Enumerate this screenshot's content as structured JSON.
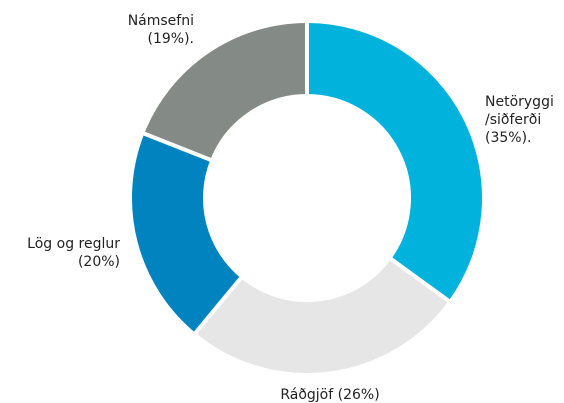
{
  "chart_data": {
    "type": "donut",
    "categories": [
      "Netöryggi /siðferði",
      "Ráðgjöf",
      "Lög og reglur",
      "Námsefni"
    ],
    "values": [
      35,
      26,
      20,
      19
    ],
    "value_labels": [
      "(35%).",
      "(26%)",
      "(20%)",
      "(19%)."
    ],
    "colors": [
      "#00b2dc",
      "#e6e6e6",
      "#0083be",
      "#848a86"
    ]
  }
}
